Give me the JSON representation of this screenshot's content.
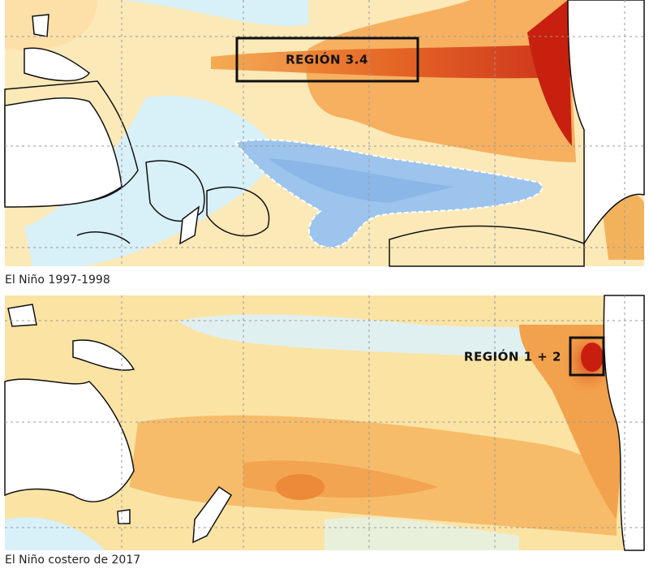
{
  "panels": [
    {
      "region_label": "REGIÓN 3.4",
      "caption": "El Niño 1997-1998"
    },
    {
      "region_label": "REGIÓN 1 + 2",
      "caption": "El Niño costero de 2017"
    }
  ]
}
